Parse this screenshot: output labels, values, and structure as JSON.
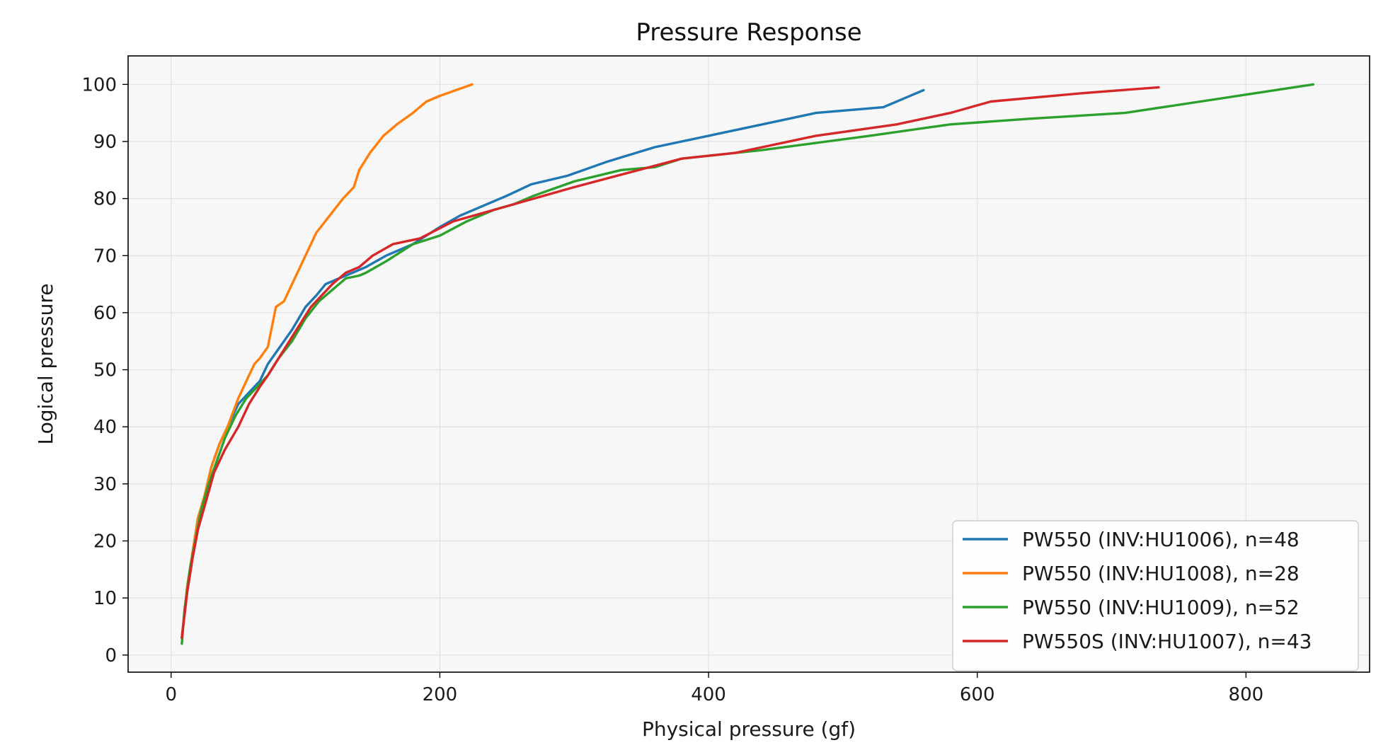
{
  "chart_data": {
    "type": "line",
    "title": "Pressure Response",
    "xlabel": "Physical pressure (gf)",
    "ylabel": "Logical pressure",
    "xlim": [
      -32,
      892
    ],
    "ylim": [
      -3,
      105
    ],
    "xticks": [
      0,
      200,
      400,
      600,
      800
    ],
    "yticks": [
      0,
      10,
      20,
      30,
      40,
      50,
      60,
      70,
      80,
      90,
      100
    ],
    "grid": true,
    "legend_position": "lower-right",
    "background": "#f7f7f7",
    "series": [
      {
        "name": "PW550 (INV:HU1006), n=48",
        "color": "#1f77b4",
        "x": [
          8,
          12,
          16,
          20,
          25,
          30,
          36,
          42,
          50,
          58,
          66,
          72,
          78,
          84,
          90,
          95,
          100,
          108,
          115,
          125,
          135,
          145,
          160,
          180,
          200,
          215,
          235,
          250,
          268,
          295,
          325,
          360,
          400,
          440,
          480,
          530,
          560
        ],
        "y": [
          3,
          12,
          18,
          24,
          28,
          33,
          37,
          40,
          44,
          46,
          48,
          51,
          53,
          55,
          57,
          59,
          61,
          63,
          65,
          66,
          67,
          68,
          70,
          72,
          75,
          77,
          79,
          80.5,
          82.5,
          84,
          86.5,
          89,
          91,
          93,
          95,
          96,
          99
        ]
      },
      {
        "name": "PW550 (INV:HU1008), n=28",
        "color": "#ff7f0e",
        "x": [
          8,
          12,
          16,
          20,
          25,
          30,
          36,
          42,
          50,
          56,
          62,
          66,
          72,
          78,
          84,
          92,
          100,
          108,
          118,
          128,
          136,
          140,
          148,
          158,
          168,
          180,
          190,
          200,
          212,
          224
        ],
        "y": [
          3,
          12,
          18,
          24,
          28,
          33,
          37,
          40,
          45,
          48,
          51,
          52,
          54,
          61,
          62,
          66,
          70,
          74,
          77,
          80,
          82,
          85,
          88,
          91,
          93,
          95,
          97,
          98,
          99,
          100
        ]
      },
      {
        "name": "PW550 (INV:HU1009), n=52",
        "color": "#2ca02c",
        "x": [
          8,
          10,
          14,
          18,
          22,
          28,
          34,
          40,
          48,
          56,
          64,
          72,
          80,
          90,
          100,
          110,
          120,
          130,
          140,
          145,
          160,
          180,
          200,
          220,
          240,
          255,
          270,
          300,
          335,
          360,
          380,
          440,
          520,
          580,
          640,
          710,
          780,
          850
        ],
        "y": [
          2,
          8,
          15,
          20,
          25,
          30,
          34,
          38,
          42,
          45,
          47,
          49,
          52,
          55,
          59,
          62,
          64,
          66,
          66.5,
          67,
          69,
          72,
          73.5,
          76,
          78,
          79,
          80.5,
          83,
          85,
          85.5,
          87,
          88.5,
          91,
          93,
          94,
          95,
          97.5,
          100
        ]
      },
      {
        "name": "PW550S (INV:HU1007), n=43",
        "color": "#d62728",
        "x": [
          8,
          12,
          16,
          20,
          26,
          32,
          40,
          50,
          58,
          66,
          72,
          80,
          88,
          96,
          104,
          112,
          120,
          130,
          140,
          150,
          165,
          185,
          210,
          240,
          270,
          300,
          340,
          380,
          420,
          440,
          480,
          540,
          580,
          610,
          680,
          735
        ],
        "y": [
          3,
          11,
          17,
          22,
          27,
          32,
          36,
          40,
          44,
          47,
          49,
          52,
          55,
          58,
          61,
          63,
          65,
          67,
          68,
          70,
          72,
          73,
          76,
          78,
          80,
          82,
          84.5,
          87,
          88,
          89,
          91,
          93,
          95,
          97,
          98.5,
          99.5
        ]
      }
    ]
  }
}
